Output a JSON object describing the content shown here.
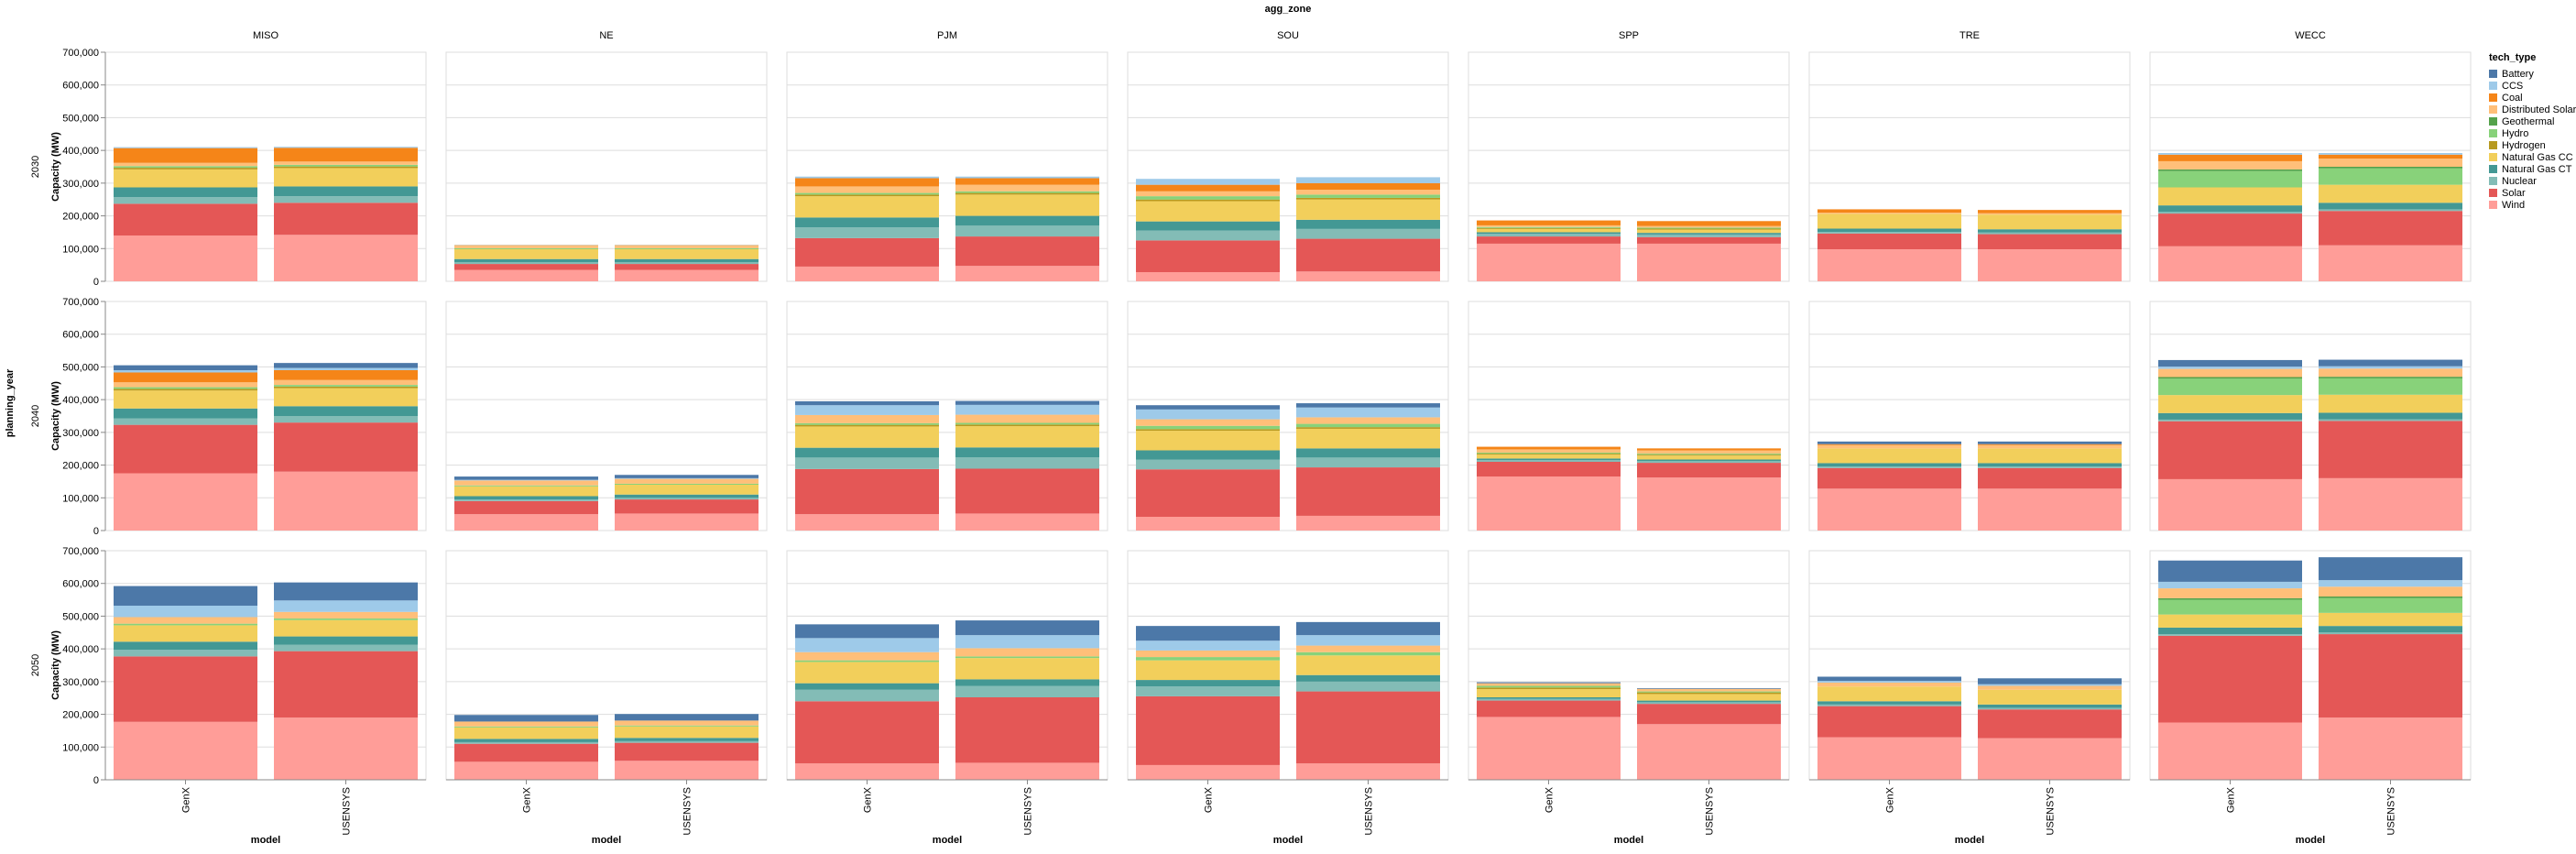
{
  "chart_data": {
    "type": "bar",
    "stacked": true,
    "title": "agg_zone",
    "facet_column_field": "agg_zone",
    "facet_row_field": "planning_year",
    "zones": [
      "MISO",
      "NE",
      "PJM",
      "SOU",
      "SPP",
      "TRE",
      "WECC"
    ],
    "years": [
      "2030",
      "2040",
      "2050"
    ],
    "categories": [
      "GenX",
      "USENSYS"
    ],
    "xlabel": "model",
    "ylabel": "Capacity (MW)",
    "ylim": [
      0,
      700000
    ],
    "yticks": [
      "0",
      "100,000",
      "200,000",
      "300,000",
      "400,000",
      "500,000",
      "600,000",
      "700,000"
    ],
    "grid": true,
    "legend": {
      "title": "tech_type",
      "position": "right",
      "items": [
        {
          "name": "Battery",
          "color": "#4c78a8"
        },
        {
          "name": "CCS",
          "color": "#9ecae9"
        },
        {
          "name": "Coal",
          "color": "#f58518"
        },
        {
          "name": "Distributed Solar",
          "color": "#ffbf79"
        },
        {
          "name": "Geothermal",
          "color": "#54a24b"
        },
        {
          "name": "Hydro",
          "color": "#88d27a"
        },
        {
          "name": "Hydrogen",
          "color": "#b79a20"
        },
        {
          "name": "Natural Gas CC",
          "color": "#f2cf5b"
        },
        {
          "name": "Natural Gas CT",
          "color": "#439894"
        },
        {
          "name": "Nuclear",
          "color": "#83bcb6"
        },
        {
          "name": "Solar",
          "color": "#e45756"
        },
        {
          "name": "Wind",
          "color": "#ff9d98"
        }
      ]
    },
    "stack_order": [
      "Wind",
      "Solar",
      "Nuclear",
      "Natural Gas CT",
      "Natural Gas CC",
      "Hydrogen",
      "Hydro",
      "Geothermal",
      "Distributed Solar",
      "Coal",
      "CCS",
      "Battery"
    ],
    "values": {
      "2030": {
        "MISO": {
          "GenX": [
            140000,
            97000,
            20000,
            30000,
            55000,
            5000,
            5000,
            0,
            10000,
            45000,
            3000,
            0
          ],
          "USENSYS": [
            142000,
            98000,
            20000,
            30000,
            56000,
            5000,
            5000,
            0,
            10000,
            42000,
            3000,
            0
          ]
        },
        "NE": {
          "GenX": [
            35000,
            18000,
            5000,
            10000,
            30000,
            0,
            3000,
            0,
            10000,
            0,
            1000,
            0
          ],
          "USENSYS": [
            35000,
            18000,
            5000,
            10000,
            30000,
            0,
            3000,
            0,
            10000,
            0,
            1000,
            0
          ]
        },
        "PJM": {
          "GenX": [
            45000,
            87000,
            33000,
            30000,
            65000,
            5000,
            5000,
            0,
            20000,
            25000,
            5000,
            0
          ],
          "USENSYS": [
            47000,
            90000,
            33000,
            30000,
            65000,
            5000,
            5000,
            0,
            20000,
            20000,
            5000,
            0
          ]
        },
        "SOU": {
          "GenX": [
            28000,
            97000,
            30000,
            28000,
            62000,
            5000,
            10000,
            0,
            15000,
            20000,
            18000,
            0
          ],
          "USENSYS": [
            30000,
            100000,
            30000,
            28000,
            62000,
            5000,
            10000,
            0,
            15000,
            20000,
            18000,
            0
          ]
        },
        "SPP": {
          "GenX": [
            115000,
            22000,
            8000,
            5000,
            10000,
            3000,
            3000,
            0,
            5000,
            15000,
            0,
            0
          ],
          "USENSYS": [
            115000,
            20000,
            8000,
            5000,
            10000,
            3000,
            3000,
            0,
            5000,
            15000,
            0,
            0
          ]
        },
        "TRE": {
          "GenX": [
            98000,
            48000,
            5000,
            10000,
            45000,
            0,
            0,
            0,
            4000,
            10000,
            0,
            0
          ],
          "USENSYS": [
            98000,
            46000,
            5000,
            10000,
            45000,
            0,
            0,
            0,
            4000,
            10000,
            0,
            0
          ]
        },
        "WECC": {
          "GenX": [
            107000,
            100000,
            5000,
            20000,
            55000,
            0,
            50000,
            5000,
            25000,
            20000,
            5000,
            0
          ],
          "USENSYS": [
            110000,
            105000,
            5000,
            20000,
            55000,
            0,
            50000,
            5000,
            25000,
            12000,
            5000,
            0
          ]
        }
      },
      "2040": {
        "MISO": {
          "GenX": [
            175000,
            148000,
            20000,
            30000,
            55000,
            5000,
            5000,
            0,
            15000,
            30000,
            7000,
            15000
          ],
          "USENSYS": [
            180000,
            150000,
            20000,
            30000,
            55000,
            5000,
            5000,
            0,
            15000,
            30000,
            7000,
            15000
          ]
        },
        "NE": {
          "GenX": [
            50000,
            40000,
            5000,
            10000,
            30000,
            0,
            3000,
            0,
            15000,
            0,
            2000,
            10000
          ],
          "USENSYS": [
            52000,
            43000,
            5000,
            10000,
            30000,
            0,
            3000,
            0,
            15000,
            0,
            2000,
            10000
          ]
        },
        "PJM": {
          "GenX": [
            50000,
            138000,
            35000,
            30000,
            65000,
            5000,
            5000,
            0,
            25000,
            0,
            30000,
            12000
          ],
          "USENSYS": [
            52000,
            137000,
            35000,
            30000,
            65000,
            5000,
            5000,
            0,
            25000,
            0,
            30000,
            12000
          ]
        },
        "SOU": {
          "GenX": [
            42000,
            145000,
            30000,
            28000,
            60000,
            5000,
            10000,
            0,
            20000,
            0,
            30000,
            13000
          ],
          "USENSYS": [
            45000,
            148000,
            30000,
            28000,
            60000,
            5000,
            10000,
            0,
            20000,
            0,
            30000,
            13000
          ]
        },
        "SPP": {
          "GenX": [
            165000,
            45000,
            5000,
            5000,
            12000,
            3000,
            3000,
            0,
            10000,
            8000,
            0,
            0
          ],
          "USENSYS": [
            162000,
            45000,
            5000,
            5000,
            12000,
            3000,
            3000,
            0,
            10000,
            6000,
            0,
            0
          ]
        },
        "TRE": {
          "GenX": [
            128000,
            63000,
            5000,
            10000,
            45000,
            0,
            0,
            0,
            10000,
            3000,
            0,
            8000
          ],
          "USENSYS": [
            128000,
            63000,
            5000,
            10000,
            45000,
            0,
            0,
            0,
            10000,
            3000,
            0,
            8000
          ]
        },
        "WECC": {
          "GenX": [
            157000,
            177000,
            5000,
            20000,
            55000,
            0,
            50000,
            5000,
            25000,
            0,
            7000,
            20000
          ],
          "USENSYS": [
            160000,
            175000,
            5000,
            20000,
            55000,
            0,
            50000,
            5000,
            25000,
            0,
            7000,
            20000
          ]
        }
      },
      "2050": {
        "MISO": {
          "GenX": [
            177000,
            200000,
            20000,
            25000,
            50000,
            0,
            5000,
            0,
            20000,
            0,
            35000,
            60000
          ],
          "USENSYS": [
            190000,
            203000,
            20000,
            25000,
            50000,
            0,
            5000,
            0,
            20000,
            0,
            35000,
            55000
          ]
        },
        "NE": {
          "GenX": [
            55000,
            55000,
            5000,
            10000,
            35000,
            0,
            3000,
            0,
            15000,
            0,
            0,
            20000
          ],
          "USENSYS": [
            58000,
            55000,
            5000,
            10000,
            35000,
            0,
            3000,
            0,
            15000,
            0,
            0,
            20000
          ]
        },
        "PJM": {
          "GenX": [
            50000,
            190000,
            35000,
            20000,
            65000,
            0,
            5000,
            0,
            25000,
            0,
            43000,
            42000
          ],
          "USENSYS": [
            52000,
            200000,
            35000,
            20000,
            65000,
            0,
            5000,
            0,
            25000,
            0,
            40000,
            45000
          ]
        },
        "SOU": {
          "GenX": [
            45000,
            210000,
            30000,
            20000,
            60000,
            0,
            10000,
            0,
            20000,
            0,
            30000,
            45000
          ],
          "USENSYS": [
            50000,
            220000,
            30000,
            20000,
            60000,
            0,
            10000,
            0,
            20000,
            0,
            32000,
            40000
          ]
        },
        "SPP": {
          "GenX": [
            192000,
            50000,
            5000,
            5000,
            25000,
            5000,
            5000,
            0,
            8000,
            0,
            0,
            3000
          ],
          "USENSYS": [
            170000,
            62000,
            5000,
            5000,
            20000,
            5000,
            3000,
            0,
            8000,
            0,
            0,
            2000
          ]
        },
        "TRE": {
          "GenX": [
            130000,
            95000,
            5000,
            10000,
            45000,
            0,
            0,
            0,
            12000,
            0,
            5000,
            13000
          ],
          "USENSYS": [
            127000,
            88000,
            5000,
            10000,
            45000,
            0,
            0,
            0,
            12000,
            0,
            5000,
            18000
          ]
        },
        "WECC": {
          "GenX": [
            175000,
            265000,
            5000,
            20000,
            40000,
            0,
            45000,
            5000,
            30000,
            0,
            20000,
            65000
          ],
          "USENSYS": [
            190000,
            255000,
            5000,
            20000,
            40000,
            0,
            45000,
            5000,
            30000,
            0,
            20000,
            70000
          ]
        }
      }
    }
  }
}
